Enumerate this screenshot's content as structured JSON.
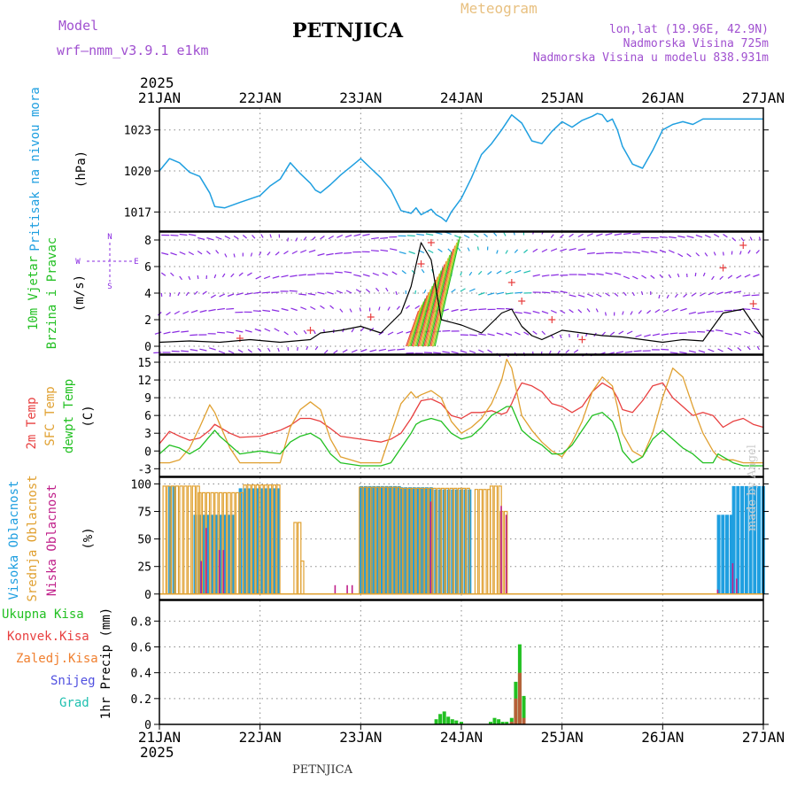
{
  "header": {
    "model_label": "Model",
    "model_name": "wrf–nmm_v3.9.1  e1km",
    "station": "PETNJICA",
    "meteogram_label": "Meteogram",
    "lonlat": "lon,lat (19.96E, 42.9N)",
    "elevation": "Nadmorska Visina 725m",
    "model_elevation": "Nadmorska Visina u modelu 838.931m",
    "footer_station": "PETNJICA",
    "watermark": "made by Angel"
  },
  "colors": {
    "pressure": "#1f9fe0",
    "temp2m": "#e84040",
    "sfc_temp": "#e0a030",
    "dewpt": "#22c022",
    "high_cloud": "#1f9fe0",
    "mid_cloud": "#e0a030",
    "low_cloud": "#c0208a",
    "precip_total": "#22c022",
    "precip_conv": "#e84040",
    "precip_freezing": "#f08030",
    "snow": "#5050e0",
    "hail": "#20c0b0",
    "wind_label": "#22c022",
    "barb_purple": "#8a2be2",
    "barb_blue": "#1f9fe0",
    "wind_speed_line": "#000000"
  },
  "chart_data": [
    {
      "type": "line",
      "panel": "pressure",
      "ylabel_parts": [
        "Pritisak na nivou mora",
        "(hPa)"
      ],
      "yticks": [
        1017,
        1020,
        1023
      ],
      "ylim": [
        1015.6,
        1024.6
      ],
      "x_days": [
        0.0,
        0.1,
        0.2,
        0.3,
        0.4,
        0.5,
        0.55,
        0.65,
        0.8,
        1.0,
        1.1,
        1.2,
        1.3,
        1.4,
        1.5,
        1.55,
        1.6,
        1.7,
        1.8,
        1.9,
        2.0,
        2.1,
        2.2,
        2.3,
        2.4,
        2.5,
        2.55,
        2.6,
        2.7,
        2.75,
        2.8,
        2.85,
        2.9,
        3.0,
        3.1,
        3.2,
        3.3,
        3.4,
        3.5,
        3.6,
        3.7,
        3.8,
        3.9,
        4.0,
        4.1,
        4.2,
        4.3,
        4.35,
        4.4,
        4.45,
        4.5,
        4.55,
        4.6,
        4.7,
        4.8,
        4.9,
        5.0,
        5.1,
        5.2,
        5.3,
        5.4,
        5.5,
        5.6,
        5.7,
        5.75,
        5.8,
        5.85,
        5.9,
        6.0
      ],
      "values": [
        1020.0,
        1020.9,
        1020.6,
        1019.9,
        1019.6,
        1018.4,
        1017.4,
        1017.3,
        1017.7,
        1018.2,
        1018.9,
        1019.4,
        1020.6,
        1019.8,
        1019.1,
        1018.6,
        1018.4,
        1019.0,
        1019.7,
        1020.3,
        1020.9,
        1020.2,
        1019.5,
        1018.6,
        1017.1,
        1016.9,
        1017.3,
        1016.8,
        1017.2,
        1016.8,
        1016.6,
        1016.3,
        1017.0,
        1018.0,
        1019.5,
        1021.2,
        1022.0,
        1023.0,
        1024.1,
        1023.5,
        1022.2,
        1022.0,
        1022.9,
        1023.6,
        1023.2,
        1023.7,
        1024.0,
        1024.2,
        1024.1,
        1023.6,
        1023.8,
        1023.0,
        1021.8,
        1020.5,
        1020.2,
        1021.5,
        1023.0,
        1023.4,
        1023.6,
        1023.4,
        1023.8,
        1023.8,
        1023.8,
        1023.8,
        1023.8,
        1023.8,
        1023.8,
        1023.8,
        1023.8
      ]
    },
    {
      "type": "line",
      "panel": "wind",
      "ylabel_parts": [
        "10m Vjetar",
        "Brzina i Pravac",
        "(m/s)"
      ],
      "compass": [
        "N",
        "S",
        "W",
        "E"
      ],
      "yticks": [
        0,
        2,
        4,
        6,
        8
      ],
      "ylim": [
        -0.6,
        8.6
      ],
      "x_days": [
        0.0,
        0.3,
        0.6,
        0.9,
        1.2,
        1.5,
        1.6,
        1.8,
        2.0,
        2.2,
        2.4,
        2.5,
        2.6,
        2.7,
        2.8,
        3.0,
        3.2,
        3.4,
        3.5,
        3.6,
        3.7,
        3.8,
        4.0,
        4.2,
        4.4,
        4.6,
        4.8,
        5.0,
        5.2,
        5.4,
        5.6,
        5.8,
        6.0
      ],
      "values": [
        0.3,
        0.4,
        0.3,
        0.5,
        0.3,
        0.5,
        1.0,
        1.2,
        1.5,
        1.0,
        2.5,
        4.5,
        7.8,
        6.5,
        2.0,
        1.6,
        1.0,
        2.5,
        2.8,
        1.5,
        0.8,
        0.5,
        1.2,
        1.0,
        0.8,
        0.7,
        0.5,
        0.3,
        0.5,
        0.4,
        2.5,
        2.8,
        0.6
      ]
    },
    {
      "type": "line",
      "panel": "temperature",
      "ylabel_parts": [
        "2m Temp",
        "SFC Temp",
        "dewpt Temp",
        "(C)"
      ],
      "yticks": [
        -3,
        0,
        3,
        6,
        9,
        12,
        15
      ],
      "ylim": [
        -4.3,
        16.2
      ],
      "series": [
        {
          "name": "2m Temp",
          "x": [
            0.0,
            0.1,
            0.2,
            0.3,
            0.4,
            0.5,
            0.55,
            0.6,
            0.7,
            0.8,
            1.0,
            1.2,
            1.3,
            1.4,
            1.5,
            1.6,
            1.7,
            1.8,
            2.0,
            2.2,
            2.3,
            2.4,
            2.5,
            2.55,
            2.6,
            2.7,
            2.8,
            2.9,
            3.0,
            3.1,
            3.2,
            3.3,
            3.4,
            3.45,
            3.5,
            3.55,
            3.6,
            3.7,
            3.8,
            3.9,
            4.0,
            4.1,
            4.2,
            4.3,
            4.4,
            4.5,
            4.55,
            4.6,
            4.7,
            4.8,
            4.9,
            5.0,
            5.1,
            5.2,
            5.3,
            5.4,
            5.5,
            5.55,
            5.6,
            5.7,
            5.8,
            5.9,
            6.0
          ],
          "values": [
            1.2,
            3.3,
            2.5,
            1.8,
            2.2,
            3.5,
            4.5,
            4.0,
            3.0,
            2.3,
            2.5,
            3.5,
            4.3,
            5.5,
            5.5,
            5.0,
            3.8,
            2.5,
            2.0,
            1.5,
            2.0,
            3.0,
            5.5,
            7.0,
            8.5,
            8.8,
            8.0,
            6.0,
            5.5,
            6.5,
            6.5,
            6.8,
            6.2,
            6.5,
            8.0,
            10.0,
            11.5,
            11.0,
            10.0,
            8.0,
            7.5,
            6.5,
            7.5,
            10.0,
            11.5,
            10.5,
            9.0,
            7.0,
            6.5,
            8.5,
            11.0,
            11.5,
            9.0,
            7.5,
            6.0,
            6.5,
            6.0,
            5.0,
            4.0,
            5.0,
            5.5,
            4.5,
            4.0
          ]
        },
        {
          "name": "SFC Temp",
          "x": [
            0.0,
            0.1,
            0.2,
            0.3,
            0.4,
            0.5,
            0.55,
            0.6,
            0.7,
            0.8,
            1.0,
            1.2,
            1.3,
            1.4,
            1.5,
            1.6,
            1.7,
            1.8,
            2.0,
            2.2,
            2.3,
            2.4,
            2.5,
            2.55,
            2.6,
            2.7,
            2.8,
            2.9,
            3.0,
            3.1,
            3.2,
            3.3,
            3.4,
            3.45,
            3.5,
            3.55,
            3.6,
            3.7,
            3.8,
            3.9,
            4.0,
            4.1,
            4.2,
            4.3,
            4.4,
            4.5,
            4.55,
            4.6,
            4.7,
            4.8,
            4.9,
            5.0,
            5.1,
            5.2,
            5.3,
            5.4,
            5.5,
            5.55,
            5.6,
            5.7,
            5.8,
            5.9,
            6.0
          ],
          "values": [
            -2.0,
            -2.0,
            -1.5,
            0.5,
            4.0,
            7.8,
            6.5,
            4.5,
            0.5,
            -2.0,
            -2.0,
            -2.0,
            4.0,
            7.0,
            8.3,
            7.0,
            2.0,
            -1.0,
            -2.0,
            -2.0,
            3.0,
            8.0,
            10.0,
            9.0,
            9.5,
            10.2,
            9.0,
            5.0,
            3.0,
            4.0,
            5.5,
            8.0,
            12.0,
            15.5,
            14.0,
            10.0,
            6.0,
            3.5,
            1.5,
            0.0,
            -1.0,
            1.5,
            5.0,
            10.0,
            12.5,
            11.0,
            7.5,
            3.0,
            0.0,
            -1.0,
            3.0,
            9.0,
            14.0,
            12.5,
            7.5,
            3.0,
            0.0,
            -1.0,
            -1.5,
            -1.5,
            -2.0,
            -2.0,
            -2.0
          ]
        },
        {
          "name": "dewpt Temp",
          "x": [
            0.0,
            0.1,
            0.2,
            0.3,
            0.4,
            0.5,
            0.55,
            0.6,
            0.7,
            0.8,
            1.0,
            1.2,
            1.3,
            1.4,
            1.5,
            1.6,
            1.7,
            1.8,
            2.0,
            2.2,
            2.3,
            2.4,
            2.5,
            2.55,
            2.6,
            2.7,
            2.8,
            2.9,
            3.0,
            3.1,
            3.2,
            3.3,
            3.4,
            3.45,
            3.5,
            3.55,
            3.6,
            3.7,
            3.8,
            3.9,
            4.0,
            4.1,
            4.2,
            4.3,
            4.4,
            4.5,
            4.55,
            4.6,
            4.7,
            4.8,
            4.9,
            5.0,
            5.1,
            5.2,
            5.3,
            5.4,
            5.5,
            5.55,
            5.6,
            5.7,
            5.8,
            5.9,
            6.0
          ],
          "values": [
            -0.5,
            1.0,
            0.5,
            -0.5,
            0.5,
            2.5,
            3.5,
            2.5,
            1.0,
            -0.5,
            0.0,
            -0.5,
            1.5,
            2.5,
            3.0,
            2.0,
            -0.5,
            -2.0,
            -2.5,
            -2.5,
            -2.0,
            0.5,
            3.0,
            4.5,
            5.0,
            5.5,
            5.0,
            3.0,
            2.0,
            2.5,
            4.0,
            6.0,
            7.0,
            7.5,
            7.5,
            5.5,
            3.5,
            2.0,
            1.0,
            -0.5,
            -0.5,
            1.0,
            3.5,
            6.0,
            6.5,
            5.0,
            3.0,
            0.0,
            -2.0,
            -1.0,
            2.0,
            3.5,
            2.0,
            0.5,
            -0.5,
            -2.0,
            -2.0,
            -0.5,
            -1.0,
            -2.0,
            -2.5,
            -2.5,
            -2.5
          ]
        }
      ]
    },
    {
      "type": "bar",
      "panel": "cloud",
      "ylabel_parts": [
        "Visoka Oblacnost",
        "Srednja Oblacnost",
        "Niska Oblacnost",
        "(%)"
      ],
      "yticks": [
        0,
        25,
        50,
        75,
        100
      ],
      "ylim": [
        -5,
        106
      ],
      "bar_step_days": 0.0417,
      "series": [
        {
          "name": "Visoka Oblacnost",
          "segments": [
            [
              0.1,
              0.15,
              98
            ],
            [
              0.35,
              0.75,
              72
            ],
            [
              0.8,
              1.2,
              96
            ],
            [
              2.0,
              2.4,
              98
            ],
            [
              2.4,
              2.7,
              97
            ],
            [
              2.7,
              3.1,
              95
            ],
            [
              5.55,
              5.7,
              72
            ],
            [
              5.7,
              6.0,
              98
            ]
          ]
        },
        {
          "name": "Srednja Oblacnost",
          "segments": [
            [
              0.05,
              0.4,
              98
            ],
            [
              0.4,
              0.85,
              92
            ],
            [
              0.85,
              1.2,
              99
            ],
            [
              1.35,
              1.42,
              65
            ],
            [
              1.42,
              1.46,
              30
            ],
            [
              2.0,
              2.4,
              97
            ],
            [
              2.4,
              3.1,
              96
            ],
            [
              3.15,
              3.3,
              95
            ],
            [
              3.3,
              3.4,
              98
            ],
            [
              3.4,
              3.48,
              75
            ]
          ]
        },
        {
          "name": "Niska Oblacnost",
          "segments": [
            [
              0.42,
              0.46,
              30
            ],
            [
              0.47,
              0.5,
              60
            ],
            [
              0.6,
              0.65,
              40
            ],
            [
              1.75,
              1.78,
              8
            ],
            [
              1.87,
              1.9,
              8
            ],
            [
              1.92,
              1.95,
              8
            ],
            [
              2.7,
              2.74,
              84
            ],
            [
              3.4,
              3.43,
              80
            ],
            [
              3.45,
              3.48,
              72
            ],
            [
              5.55,
              5.58,
              4
            ],
            [
              5.7,
              5.73,
              28
            ],
            [
              5.74,
              5.77,
              14
            ]
          ]
        }
      ]
    },
    {
      "type": "bar",
      "panel": "precip",
      "ylabel_parts": [
        "1hr Precip (mm)"
      ],
      "legend": [
        "Ukupna Kisa",
        "Konvek.Kisa",
        "Zaledj.Kisa",
        "Snijeg",
        "Grad"
      ],
      "yticks": [
        0,
        0.2,
        0.4,
        0.6,
        0.8
      ],
      "ylim": [
        0,
        0.96
      ],
      "series": [
        {
          "name": "Ukupna Kisa",
          "x": [
            2.75,
            2.79,
            2.83,
            2.87,
            2.91,
            2.95,
            3.0,
            3.29,
            3.33,
            3.37,
            3.41,
            3.45,
            3.5,
            3.54,
            3.58,
            3.62
          ],
          "values": [
            0.04,
            0.08,
            0.1,
            0.06,
            0.04,
            0.03,
            0.02,
            0.02,
            0.05,
            0.04,
            0.02,
            0.02,
            0.05,
            0.33,
            0.62,
            0.22
          ]
        },
        {
          "name": "Konvek.Kisa",
          "x": [
            3.5,
            3.54,
            3.58,
            3.62
          ],
          "values": [
            0.02,
            0.2,
            0.4,
            0.05
          ]
        }
      ]
    }
  ],
  "x_axis": {
    "year": "2025",
    "day_labels": [
      "21JAN",
      "22JAN",
      "23JAN",
      "24JAN",
      "25JAN",
      "26JAN",
      "27JAN"
    ]
  }
}
